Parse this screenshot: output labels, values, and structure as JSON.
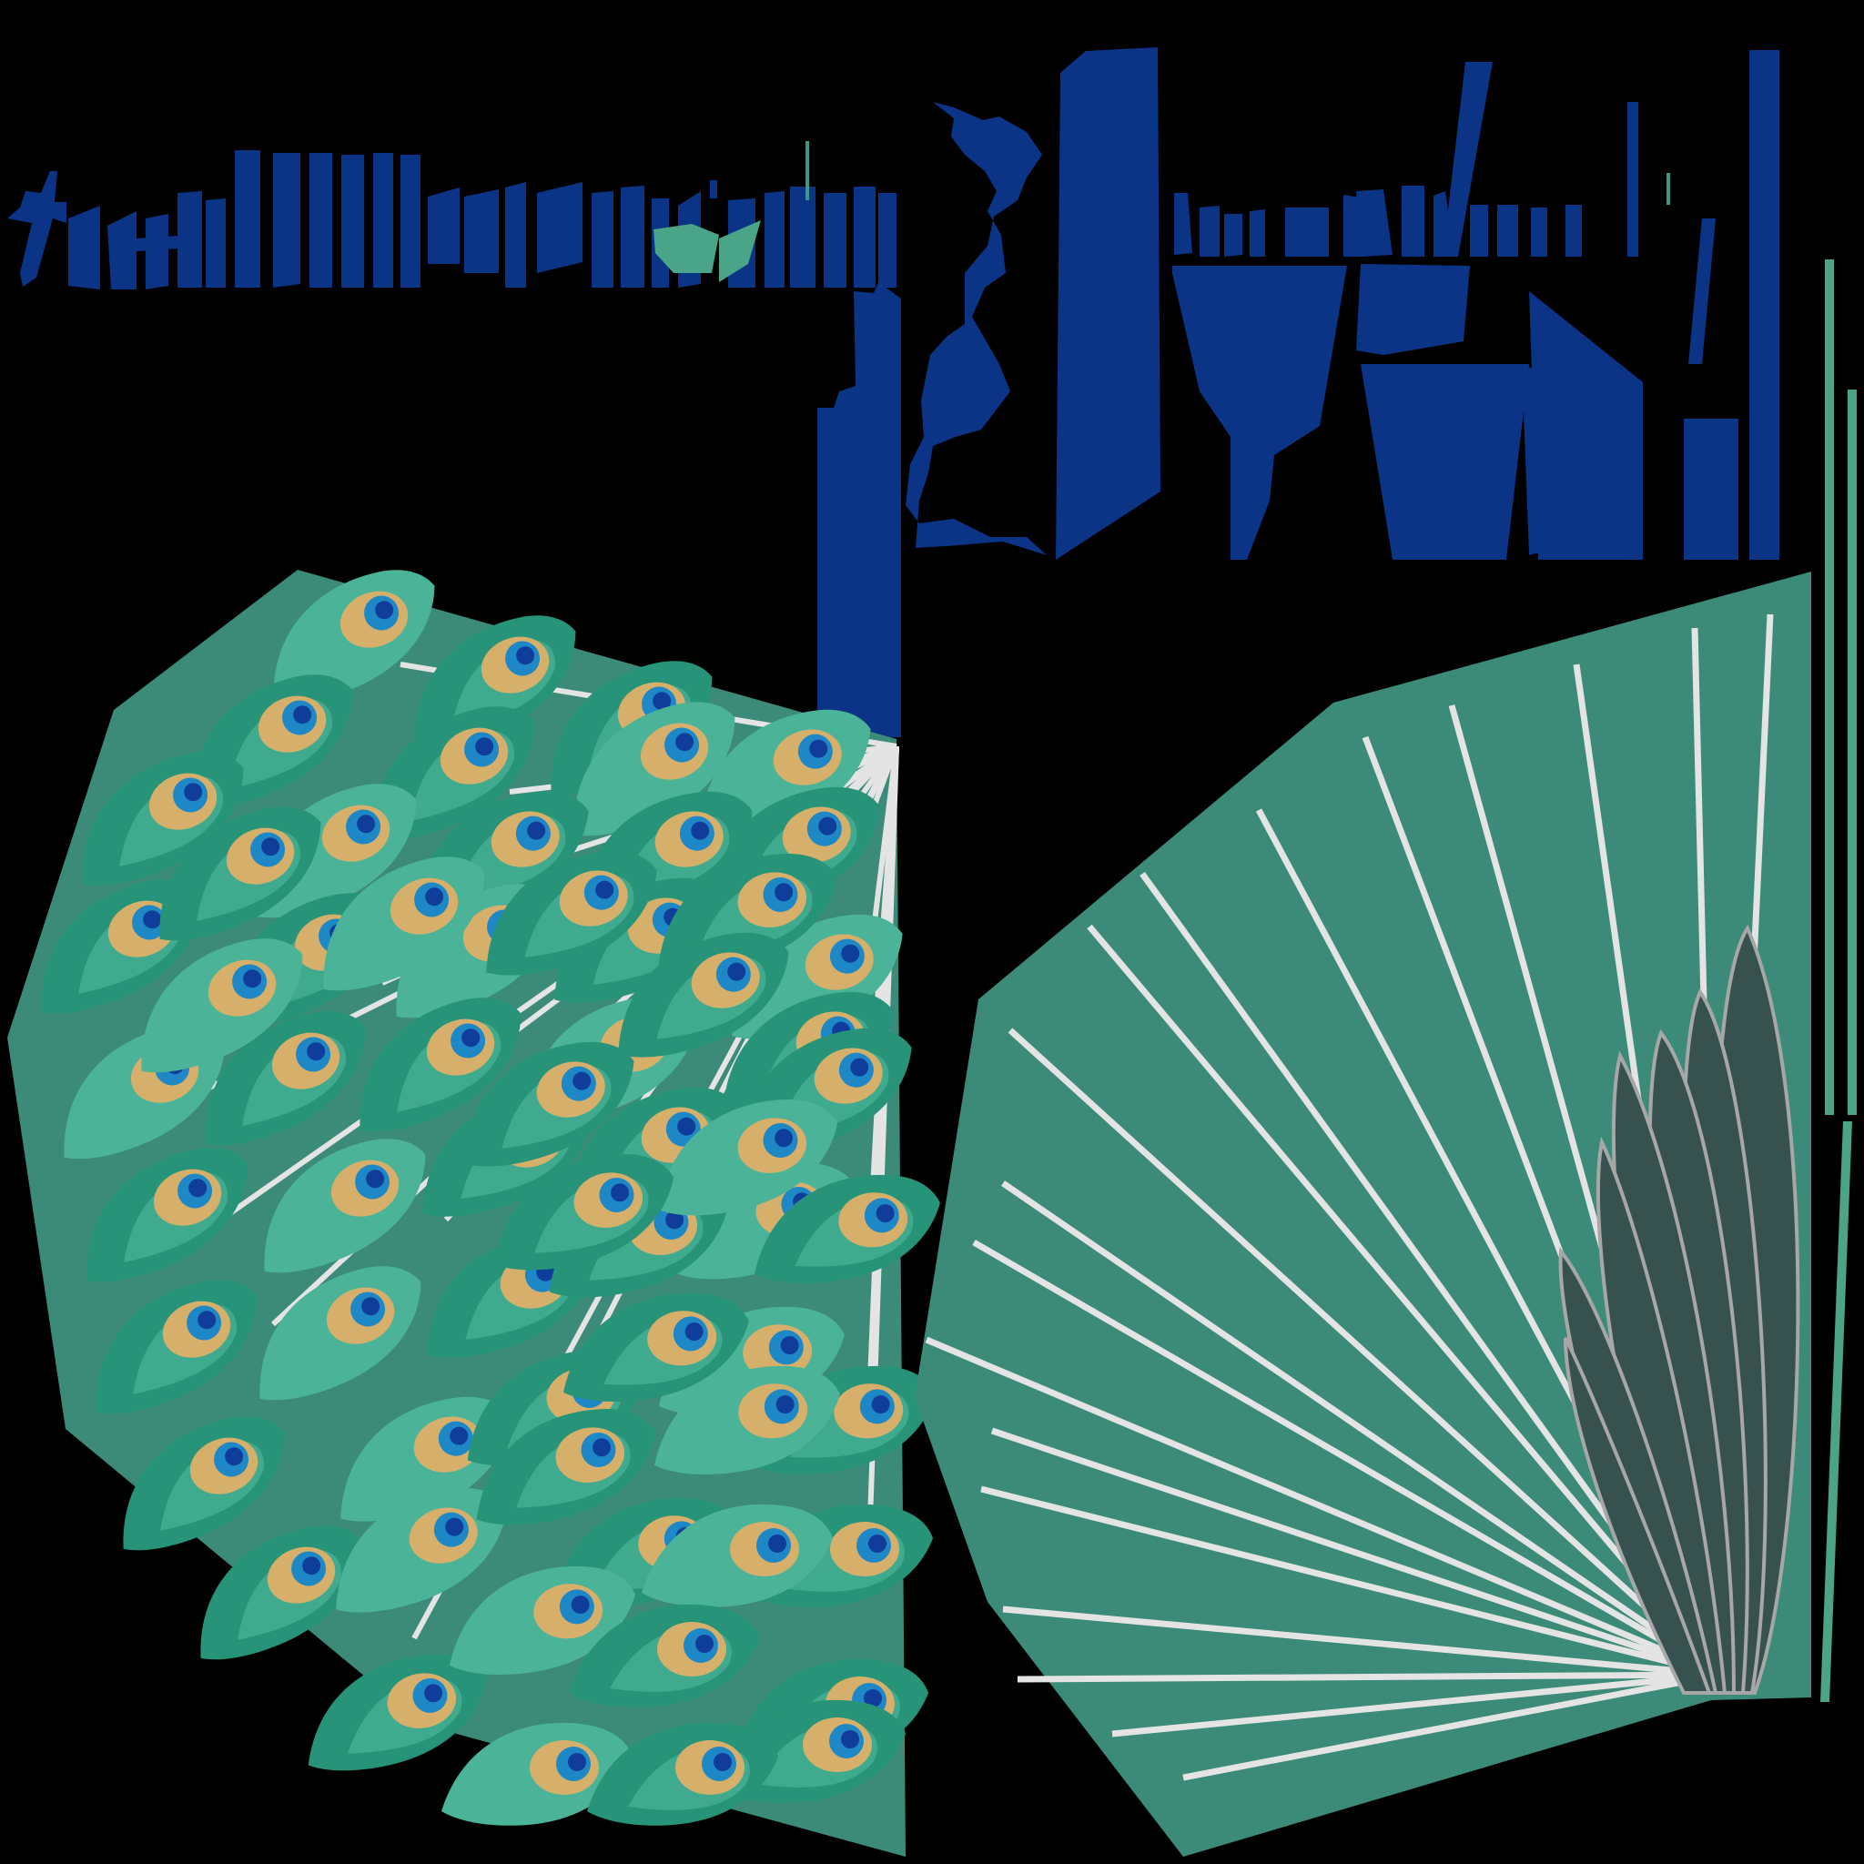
{
  "palette": {
    "background": "#000000",
    "uv_blue": "#0b3487",
    "teal_panel": "#3b8b78",
    "teal_fill": "#2f9a7f",
    "feather_dark": "#279378",
    "feather_light": "#4bb498",
    "eye_gold": "#d6b06a",
    "eye_blue": "#1e88c7",
    "eye_navy": "#103d99",
    "shaft_white": "#e4e4e4",
    "crest_dark": "#37524e",
    "crest_outline": "#a7a7a7",
    "accent_green": "#4aa488"
  },
  "icons": [
    "peacock-tail-feathers-icon",
    "fan-tail-icon",
    "crest-feathers-icon"
  ],
  "fan_shaft_count": 22,
  "crest_feather_count": 7,
  "eye_feather_count": 62
}
